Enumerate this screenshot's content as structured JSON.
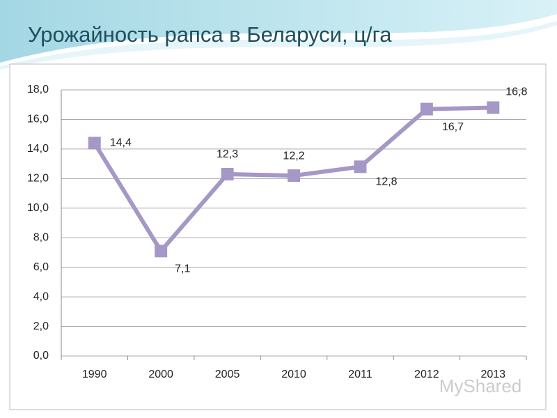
{
  "chart_data": {
    "type": "line",
    "title": "Урожайность рапса в Беларуси, ц/га",
    "categories": [
      "1990",
      "2000",
      "2005",
      "2010",
      "2011",
      "2012",
      "2013"
    ],
    "series": [
      {
        "color": "#a597c6",
        "values": [
          14.4,
          7.1,
          12.3,
          12.2,
          12.8,
          16.7,
          16.8
        ],
        "value_labels": [
          "14,4",
          "7,1",
          "12,3",
          "12,2",
          "12,8",
          "16,7",
          "16,8"
        ]
      }
    ],
    "ylim": [
      0,
      18
    ],
    "yticks": [
      {
        "value": 0,
        "label": "0,0"
      },
      {
        "value": 2,
        "label": "2,0"
      },
      {
        "value": 4,
        "label": "4,0"
      },
      {
        "value": 6,
        "label": "6,0"
      },
      {
        "value": 8,
        "label": "8,0"
      },
      {
        "value": 10,
        "label": "10,0"
      },
      {
        "value": 12,
        "label": "12,0"
      },
      {
        "value": 14,
        "label": "14,0"
      },
      {
        "value": 16,
        "label": "16,0"
      },
      {
        "value": 18,
        "label": "18,0"
      }
    ],
    "grid": true
  },
  "watermark": "MyShared"
}
